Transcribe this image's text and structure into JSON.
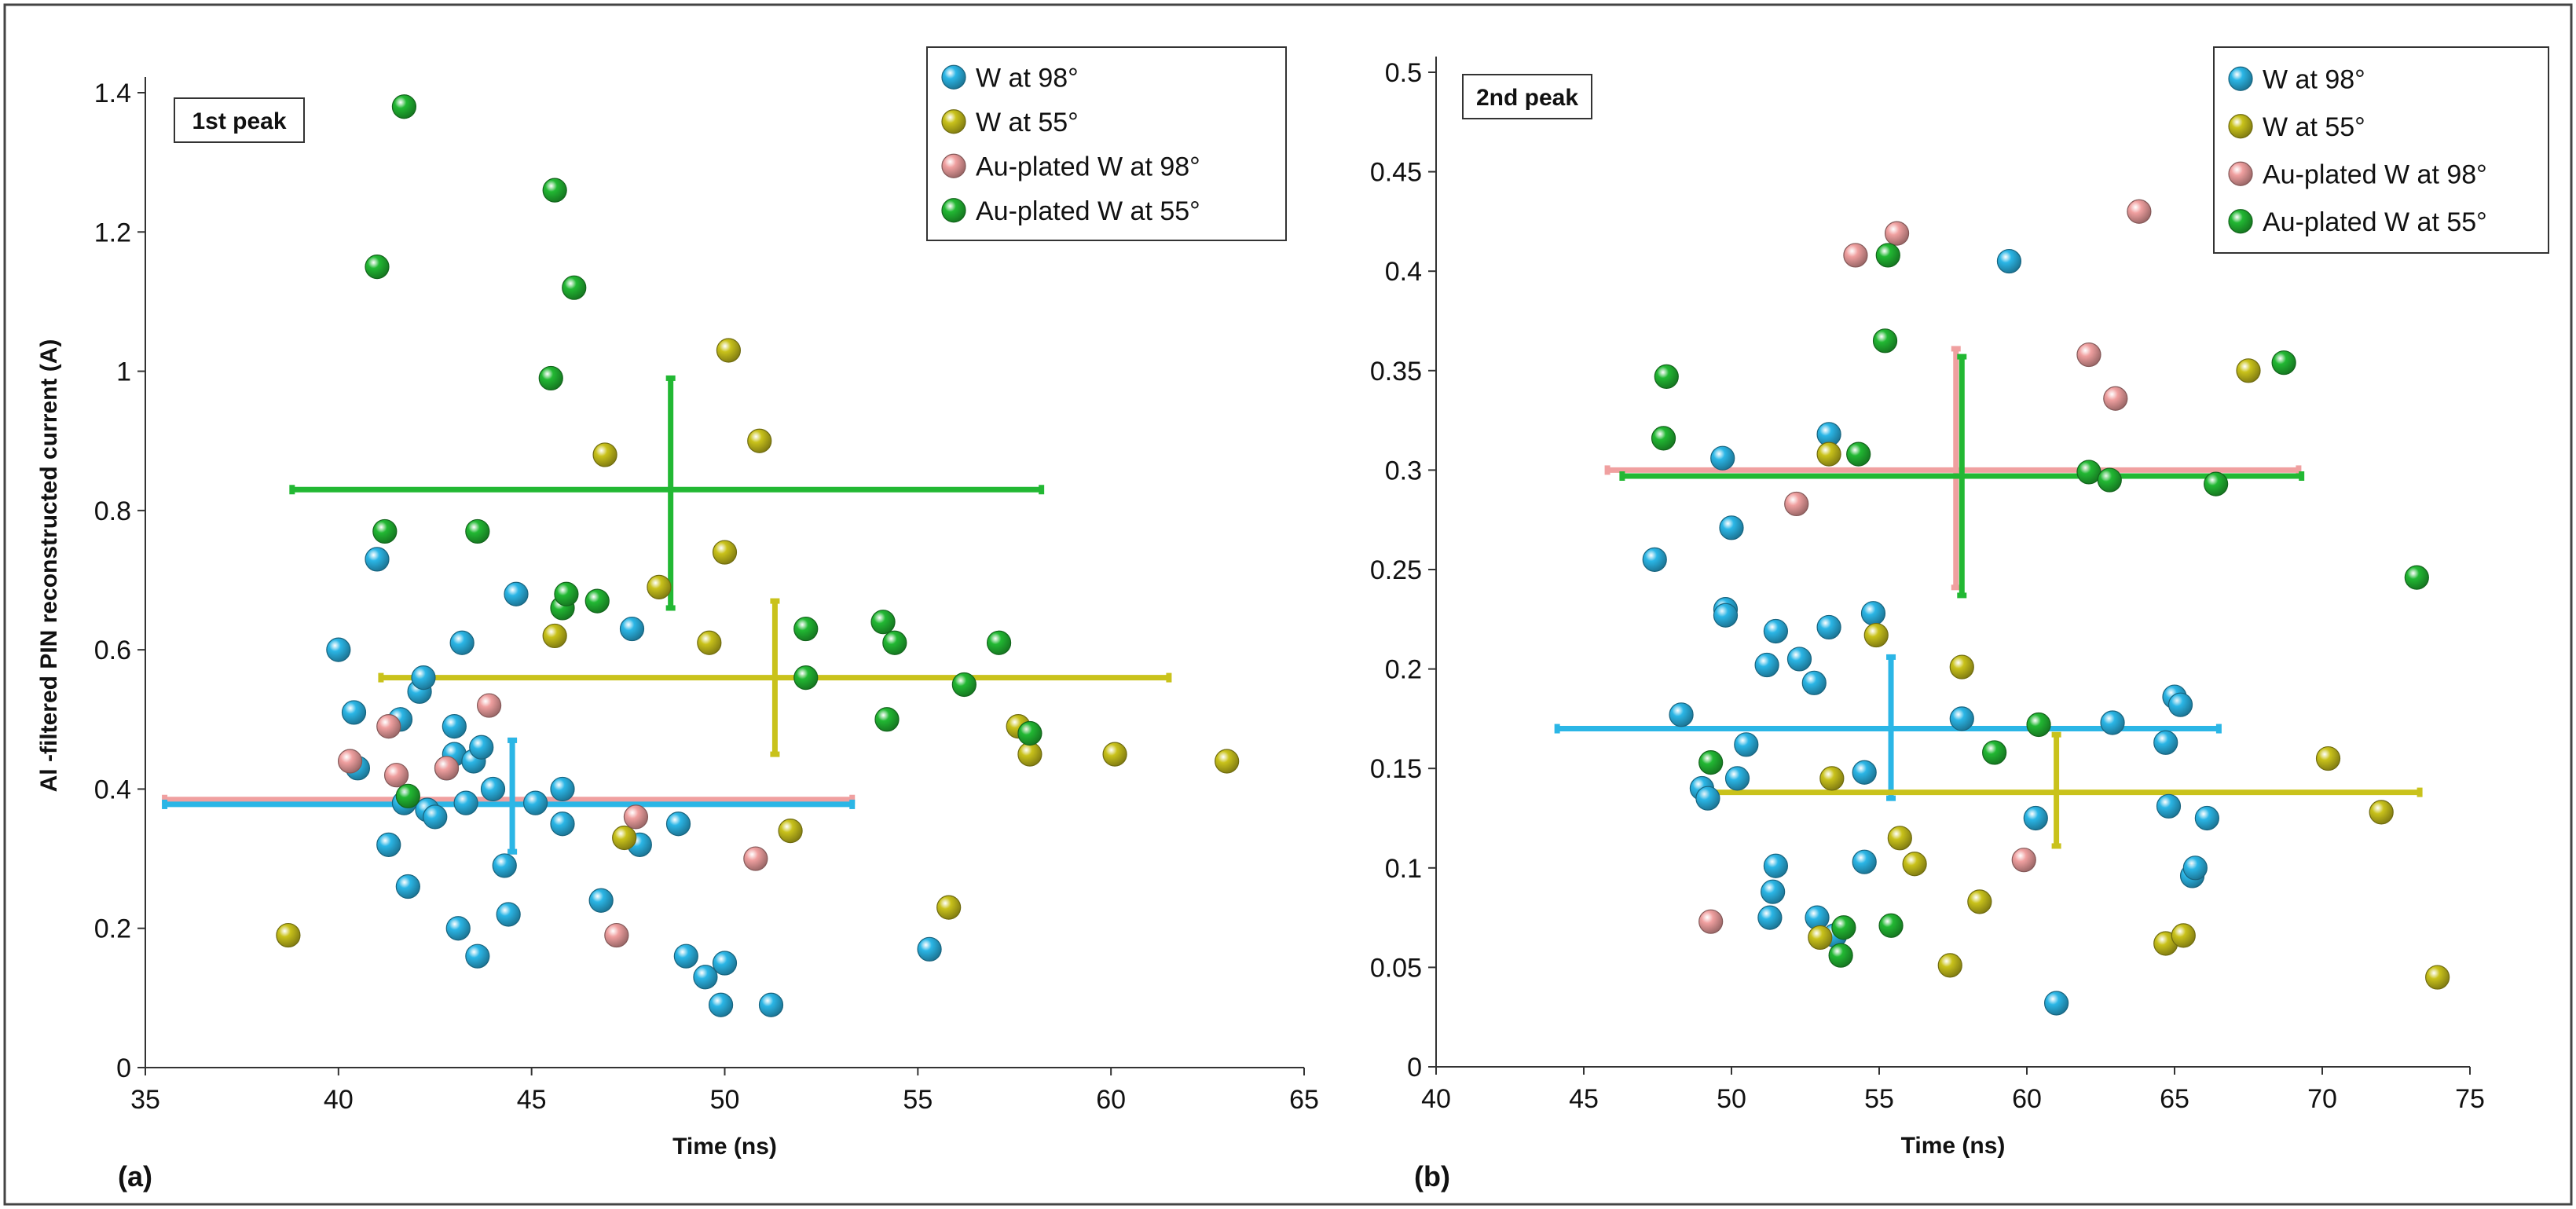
{
  "chart_data": [
    {
      "type": "scatter",
      "panel": "(a)",
      "annotation": "1st peak",
      "xlabel": "Time (ns)",
      "ylabel": "Al -filtered PIN  reconstructed current (A)",
      "xlim": [
        35,
        65
      ],
      "ylim": [
        0,
        1.4
      ],
      "xticks": [
        "35",
        "40",
        "45",
        "50",
        "55",
        "60",
        "65"
      ],
      "yticks": [
        "0",
        "0.2",
        "0.4",
        "0.6",
        "0.8",
        "1",
        "1.2",
        "1.4"
      ],
      "series": [
        {
          "name": "W at 98°",
          "color": "#2bb6e6",
          "points": [
            [
              40,
              0.6
            ],
            [
              40.4,
              0.51
            ],
            [
              40.5,
              0.43
            ],
            [
              41,
              0.73
            ],
            [
              41.3,
              0.32
            ],
            [
              41.6,
              0.5
            ],
            [
              41.7,
              0.38
            ],
            [
              41.8,
              0.26
            ],
            [
              42.1,
              0.54
            ],
            [
              42.2,
              0.56
            ],
            [
              42.3,
              0.37
            ],
            [
              42.5,
              0.36
            ],
            [
              42.8,
              0.43
            ],
            [
              43.0,
              0.49
            ],
            [
              43.0,
              0.45
            ],
            [
              43.1,
              0.2
            ],
            [
              43.2,
              0.61
            ],
            [
              43.3,
              0.38
            ],
            [
              43.5,
              0.44
            ],
            [
              43.6,
              0.16
            ],
            [
              43.7,
              0.46
            ],
            [
              44.0,
              0.4
            ],
            [
              44.3,
              0.29
            ],
            [
              44.4,
              0.22
            ],
            [
              44.6,
              0.68
            ],
            [
              45.1,
              0.38
            ],
            [
              45.8,
              0.35
            ],
            [
              45.8,
              0.4
            ],
            [
              46.8,
              0.24
            ],
            [
              47.6,
              0.63
            ],
            [
              47.8,
              0.32
            ],
            [
              48.8,
              0.35
            ],
            [
              49.0,
              0.16
            ],
            [
              49.5,
              0.13
            ],
            [
              49.9,
              0.09
            ],
            [
              50.0,
              0.15
            ],
            [
              51.2,
              0.09
            ],
            [
              55.3,
              0.17
            ]
          ]
        },
        {
          "name": "W at 55°",
          "color": "#c9c21b",
          "points": [
            [
              38.7,
              0.19
            ],
            [
              46.9,
              0.88
            ],
            [
              47.4,
              0.33
            ],
            [
              48.3,
              0.69
            ],
            [
              49.6,
              0.61
            ],
            [
              50.0,
              0.74
            ],
            [
              50.1,
              1.03
            ],
            [
              50.9,
              0.9
            ],
            [
              51.7,
              0.34
            ],
            [
              55.8,
              0.23
            ],
            [
              57.6,
              0.49
            ],
            [
              57.9,
              0.45
            ],
            [
              60.1,
              0.45
            ],
            [
              63.0,
              0.44
            ],
            [
              45.6,
              0.62
            ]
          ]
        },
        {
          "name": "Au-plated W at 98°",
          "color": "#f0a0a0",
          "points": [
            [
              40.3,
              0.44
            ],
            [
              41.3,
              0.49
            ],
            [
              41.5,
              0.42
            ],
            [
              42.8,
              0.43
            ],
            [
              43.9,
              0.52
            ],
            [
              47.2,
              0.19
            ],
            [
              47.7,
              0.36
            ],
            [
              50.8,
              0.3
            ]
          ]
        },
        {
          "name": "Au-plated W at 55°",
          "color": "#22b833",
          "points": [
            [
              41.0,
              1.15
            ],
            [
              41.2,
              0.77
            ],
            [
              41.7,
              1.38
            ],
            [
              41.8,
              0.39
            ],
            [
              43.6,
              0.77
            ],
            [
              45.5,
              0.99
            ],
            [
              45.6,
              1.26
            ],
            [
              45.8,
              0.66
            ],
            [
              45.9,
              0.68
            ],
            [
              46.1,
              1.12
            ],
            [
              46.7,
              0.67
            ],
            [
              52.1,
              0.56
            ],
            [
              52.1,
              0.63
            ],
            [
              54.1,
              0.64
            ],
            [
              54.2,
              0.5
            ],
            [
              54.4,
              0.61
            ],
            [
              56.2,
              0.55
            ],
            [
              57.1,
              0.61
            ],
            [
              57.9,
              0.48
            ]
          ]
        }
      ],
      "error_bars": [
        {
          "series": "Au-plated W at 55°",
          "x": 48.6,
          "y": 0.83,
          "xmin": 38.8,
          "xmax": 58.2,
          "ymin": 0.66,
          "ymax": 0.99
        },
        {
          "series": "W at 55°",
          "x": 51.3,
          "y": 0.56,
          "xmin": 41.1,
          "xmax": 61.5,
          "ymin": 0.45,
          "ymax": 0.67
        },
        {
          "series": "Au-plated W at 98°",
          "x": 44.5,
          "y": 0.385,
          "xmin": 35.5,
          "xmax": 53.3,
          "ymin": 0.31,
          "ymax": 0.47
        },
        {
          "series": "W at 98°",
          "x": 44.5,
          "y": 0.378,
          "xmin": 35.5,
          "xmax": 53.3,
          "ymin": 0.31,
          "ymax": 0.47
        }
      ],
      "legend": "top-right"
    },
    {
      "type": "scatter",
      "panel": "(b)",
      "annotation": "2nd peak",
      "xlabel": "Time (ns)",
      "ylabel": "",
      "xlim": [
        40,
        75
      ],
      "ylim": [
        0,
        0.5
      ],
      "xticks": [
        "40",
        "45",
        "50",
        "55",
        "60",
        "65",
        "70",
        "75"
      ],
      "yticks": [
        "0",
        "0.05",
        "0.1",
        "0.15",
        "0.2",
        "0.25",
        "0.3",
        "0.35",
        "0.4",
        "0.45",
        "0.5"
      ],
      "series": [
        {
          "name": "W at 98°",
          "color": "#2bb6e6",
          "points": [
            [
              47.4,
              0.255
            ],
            [
              48.3,
              0.177
            ],
            [
              49.0,
              0.14
            ],
            [
              49.2,
              0.135
            ],
            [
              49.7,
              0.306
            ],
            [
              49.8,
              0.23
            ],
            [
              49.8,
              0.227
            ],
            [
              50.0,
              0.271
            ],
            [
              50.2,
              0.145
            ],
            [
              50.5,
              0.162
            ],
            [
              51.2,
              0.202
            ],
            [
              51.3,
              0.075
            ],
            [
              51.4,
              0.088
            ],
            [
              51.5,
              0.101
            ],
            [
              51.5,
              0.219
            ],
            [
              52.3,
              0.205
            ],
            [
              52.9,
              0.075
            ],
            [
              52.8,
              0.193
            ],
            [
              53.3,
              0.221
            ],
            [
              53.3,
              0.318
            ],
            [
              53.5,
              0.066
            ],
            [
              54.5,
              0.103
            ],
            [
              54.5,
              0.148
            ],
            [
              54.8,
              0.228
            ],
            [
              57.8,
              0.175
            ],
            [
              59.4,
              0.405
            ],
            [
              60.3,
              0.125
            ],
            [
              61.0,
              0.032
            ],
            [
              62.9,
              0.173
            ],
            [
              64.7,
              0.163
            ],
            [
              64.8,
              0.131
            ],
            [
              65.0,
              0.186
            ],
            [
              65.2,
              0.182
            ],
            [
              65.6,
              0.096
            ],
            [
              65.7,
              0.1
            ],
            [
              66.1,
              0.125
            ]
          ]
        },
        {
          "name": "W at 55°",
          "color": "#c9c21b",
          "points": [
            [
              53.0,
              0.065
            ],
            [
              53.3,
              0.308
            ],
            [
              53.4,
              0.145
            ],
            [
              54.9,
              0.217
            ],
            [
              55.7,
              0.115
            ],
            [
              56.2,
              0.102
            ],
            [
              57.4,
              0.051
            ],
            [
              57.8,
              0.201
            ],
            [
              58.4,
              0.083
            ],
            [
              64.7,
              0.062
            ],
            [
              65.3,
              0.066
            ],
            [
              67.5,
              0.35
            ],
            [
              70.2,
              0.155
            ],
            [
              72.0,
              0.128
            ],
            [
              73.9,
              0.045
            ]
          ]
        },
        {
          "name": "Au-plated W at 98°",
          "color": "#f0a0a0",
          "points": [
            [
              49.3,
              0.073
            ],
            [
              52.2,
              0.283
            ],
            [
              54.2,
              0.408
            ],
            [
              55.6,
              0.419
            ],
            [
              59.9,
              0.104
            ],
            [
              62.1,
              0.358
            ],
            [
              63.0,
              0.336
            ],
            [
              63.8,
              0.43
            ]
          ]
        },
        {
          "name": "Au-plated W at 55°",
          "color": "#22b833",
          "points": [
            [
              47.7,
              0.316
            ],
            [
              47.8,
              0.347
            ],
            [
              49.3,
              0.153
            ],
            [
              53.7,
              0.056
            ],
            [
              53.8,
              0.07
            ],
            [
              54.3,
              0.308
            ],
            [
              55.2,
              0.365
            ],
            [
              55.3,
              0.408
            ],
            [
              55.4,
              0.071
            ],
            [
              58.9,
              0.158
            ],
            [
              60.4,
              0.172
            ],
            [
              62.1,
              0.299
            ],
            [
              62.8,
              0.295
            ],
            [
              66.4,
              0.293
            ],
            [
              68.7,
              0.354
            ],
            [
              73.2,
              0.246
            ]
          ]
        }
      ],
      "error_bars": [
        {
          "series": "Au-plated W at 98°",
          "x": 57.6,
          "y": 0.3,
          "xmin": 45.8,
          "xmax": 69.2,
          "ymin": 0.241,
          "ymax": 0.361
        },
        {
          "series": "Au-plated W at 55°",
          "x": 57.8,
          "y": 0.297,
          "xmin": 46.3,
          "xmax": 69.3,
          "ymin": 0.237,
          "ymax": 0.357
        },
        {
          "series": "W at 98°",
          "x": 55.4,
          "y": 0.17,
          "xmin": 44.1,
          "xmax": 66.5,
          "ymin": 0.135,
          "ymax": 0.206
        },
        {
          "series": "W at 55°",
          "x": 61.0,
          "y": 0.138,
          "xmin": 49.0,
          "xmax": 73.3,
          "ymin": 0.111,
          "ymax": 0.167
        }
      ],
      "legend": "top-right"
    }
  ]
}
